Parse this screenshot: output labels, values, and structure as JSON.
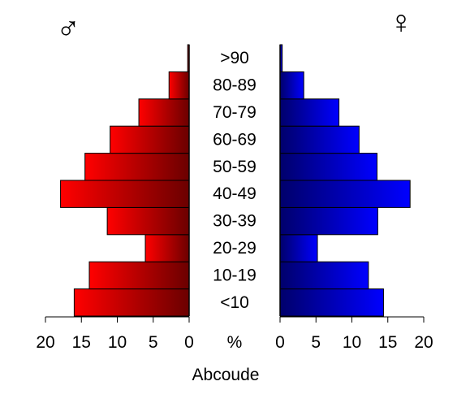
{
  "chart_data": {
    "type": "bar",
    "title": "Abcoude",
    "center_unit": "%",
    "male_symbol": "♂",
    "female_symbol": "♀",
    "categories": [
      "<10",
      "10-19",
      "20-29",
      "30-39",
      "40-49",
      "50-59",
      "60-69",
      "70-79",
      "80-89",
      ">90"
    ],
    "series": [
      {
        "name": "♂",
        "values": [
          16.0,
          13.9,
          6.1,
          11.4,
          17.9,
          14.5,
          11.0,
          7.0,
          2.8,
          0.2
        ]
      },
      {
        "name": "♀",
        "values": [
          14.4,
          12.3,
          5.2,
          13.6,
          18.1,
          13.5,
          11.0,
          8.2,
          3.3,
          0.3
        ]
      }
    ],
    "xlim": [
      0,
      20
    ],
    "x_ticks": [
      0,
      5,
      10,
      15,
      20
    ],
    "male_ticks_labels": [
      "20",
      "15",
      "10",
      "5",
      "0"
    ],
    "female_ticks_labels": [
      "0",
      "5",
      "10",
      "15",
      "20"
    ],
    "colors": {
      "male_light": "#ff0000",
      "male_dark": "#6b0000",
      "female_light": "#0000ff",
      "female_dark": "#00006b"
    }
  }
}
